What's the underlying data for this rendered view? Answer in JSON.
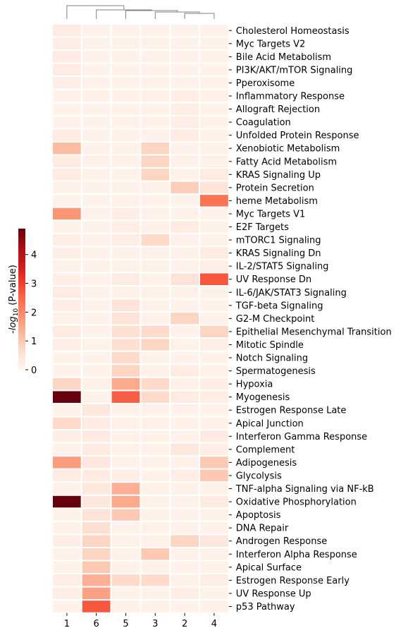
{
  "chart_data": {
    "type": "heatmap",
    "columns": [
      "1",
      "6",
      "5",
      "3",
      "2",
      "4"
    ],
    "rows": [
      "Cholesterol Homeostasis",
      "Myc Targets V2",
      "Bile Acid Metabolism",
      "PI3K/AKT/mTOR  Signaling",
      "Pperoxisome",
      "Inflammatory Response",
      "Allograft Rejection",
      "Coagulation",
      "Unfolded Protein Response",
      "Xenobiotic Metabolism",
      "Fatty Acid Metabolism",
      "KRAS Signaling Up",
      "Protein Secretion",
      "heme Metabolism",
      "Myc Targets V1",
      "E2F Targets",
      "mTORC1 Signaling",
      "KRAS Signaling Dn",
      "IL-2/STAT5 Signaling",
      "UV Response Dn",
      "IL-6/JAK/STAT3 Signaling",
      "TGF-beta Signaling",
      "G2-M Checkpoint",
      "Epithelial Mesenchymal Transition",
      "Mitotic Spindle",
      "Notch Signaling",
      "Spermatogenesis",
      "Hypoxia",
      "Myogenesis",
      "Estrogen Response Late",
      "Apical Junction",
      "Interferon Gamma Response",
      "Complement",
      "Adipogenesis",
      "Glycolysis",
      "TNF-alpha Signaling via NF-kB",
      "Oxidative Phosphorylation",
      "Apoptosis",
      "DNA Repair",
      "Androgen Response",
      "Interferon Alpha Response",
      "Apical Surface",
      "Estrogen Response Early",
      "UV Response Up",
      "p53 Pathway"
    ],
    "values": [
      [
        0.3,
        0.1,
        0.1,
        0.1,
        0.1,
        0.1
      ],
      [
        0.2,
        0.1,
        0.1,
        0.1,
        0.1,
        0.1
      ],
      [
        0.3,
        0.1,
        0.1,
        0.1,
        0.1,
        0.1
      ],
      [
        0.3,
        0.1,
        0.1,
        0.1,
        0.1,
        0.1
      ],
      [
        0.2,
        0.1,
        0.1,
        0.1,
        0.1,
        0.1
      ],
      [
        0.1,
        0.1,
        0.1,
        0.1,
        0.2,
        0.1
      ],
      [
        0.1,
        0.1,
        0.1,
        0.1,
        0.2,
        0.1
      ],
      [
        0.1,
        0.1,
        0.1,
        0.1,
        0.2,
        0.1
      ],
      [
        0.3,
        0.1,
        0.1,
        0.1,
        0.3,
        0.1
      ],
      [
        1.2,
        0.1,
        0.1,
        0.8,
        0.1,
        0.1
      ],
      [
        0.3,
        0.1,
        0.1,
        0.8,
        0.1,
        0.1
      ],
      [
        0.3,
        0.1,
        0.1,
        0.8,
        0.1,
        0.3
      ],
      [
        0.1,
        0.1,
        0.1,
        0.1,
        0.9,
        0.5
      ],
      [
        0.1,
        0.1,
        0.1,
        0.1,
        0.1,
        2.3
      ],
      [
        1.8,
        0.1,
        0.2,
        0.1,
        0.1,
        0.1
      ],
      [
        0.1,
        0.1,
        0.2,
        0.1,
        0.3,
        0.1
      ],
      [
        0.2,
        0.1,
        0.2,
        0.7,
        0.1,
        0.1
      ],
      [
        0.2,
        0.1,
        0.1,
        0.1,
        0.1,
        0.3
      ],
      [
        0.1,
        0.1,
        0.1,
        0.1,
        0.1,
        0.2
      ],
      [
        0.2,
        0.1,
        0.3,
        0.1,
        0.5,
        2.7
      ],
      [
        0.3,
        0.1,
        0.1,
        0.1,
        0.1,
        0.1
      ],
      [
        0.2,
        0.1,
        0.5,
        0.1,
        0.1,
        0.1
      ],
      [
        0.1,
        0.1,
        0.5,
        0.1,
        0.8,
        0.1
      ],
      [
        0.3,
        0.1,
        0.6,
        0.7,
        0.1,
        0.8
      ],
      [
        0.2,
        0.1,
        0.6,
        0.8,
        0.1,
        0.2
      ],
      [
        0.1,
        0.1,
        0.7,
        0.1,
        0.1,
        0.1
      ],
      [
        0.1,
        0.1,
        0.8,
        0.1,
        0.3,
        0.1
      ],
      [
        0.8,
        0.1,
        1.5,
        0.7,
        0.1,
        0.2
      ],
      [
        4.9,
        0.1,
        2.6,
        0.7,
        0.3,
        0.2
      ],
      [
        0.1,
        0.4,
        0.1,
        0.1,
        0.1,
        0.1
      ],
      [
        0.7,
        0.3,
        0.1,
        0.1,
        0.1,
        0.1
      ],
      [
        0.2,
        0.3,
        0.1,
        0.1,
        0.1,
        0.3
      ],
      [
        0.1,
        0.3,
        0.1,
        0.1,
        0.4,
        0.2
      ],
      [
        1.7,
        0.4,
        0.1,
        0.1,
        0.1,
        1.0
      ],
      [
        0.3,
        0.3,
        0.2,
        0.1,
        0.2,
        1.0
      ],
      [
        0.1,
        0.4,
        1.4,
        0.1,
        0.1,
        0.1
      ],
      [
        4.9,
        0.4,
        1.5,
        0.1,
        0.1,
        0.3
      ],
      [
        0.1,
        0.5,
        1.0,
        0.1,
        0.1,
        0.1
      ],
      [
        0.1,
        0.6,
        0.1,
        0.1,
        0.1,
        0.1
      ],
      [
        0.2,
        0.8,
        0.1,
        0.1,
        0.8,
        0.4
      ],
      [
        0.1,
        0.8,
        0.1,
        1.0,
        0.1,
        0.1
      ],
      [
        0.1,
        1.0,
        0.1,
        0.1,
        0.1,
        0.1
      ],
      [
        0.2,
        1.4,
        0.7,
        0.7,
        0.1,
        0.2
      ],
      [
        0.2,
        1.6,
        0.1,
        0.1,
        0.2,
        0.1
      ],
      [
        0.1,
        2.7,
        0.1,
        0.1,
        0.1,
        0.1
      ]
    ],
    "colormap": "Reds",
    "vmin": 0,
    "vmax": 4.9,
    "colorbar": {
      "label": "-log10 (P-value)",
      "ticks": [
        0,
        1,
        2,
        3,
        4
      ]
    },
    "dendrogram": "top",
    "grid": false
  }
}
